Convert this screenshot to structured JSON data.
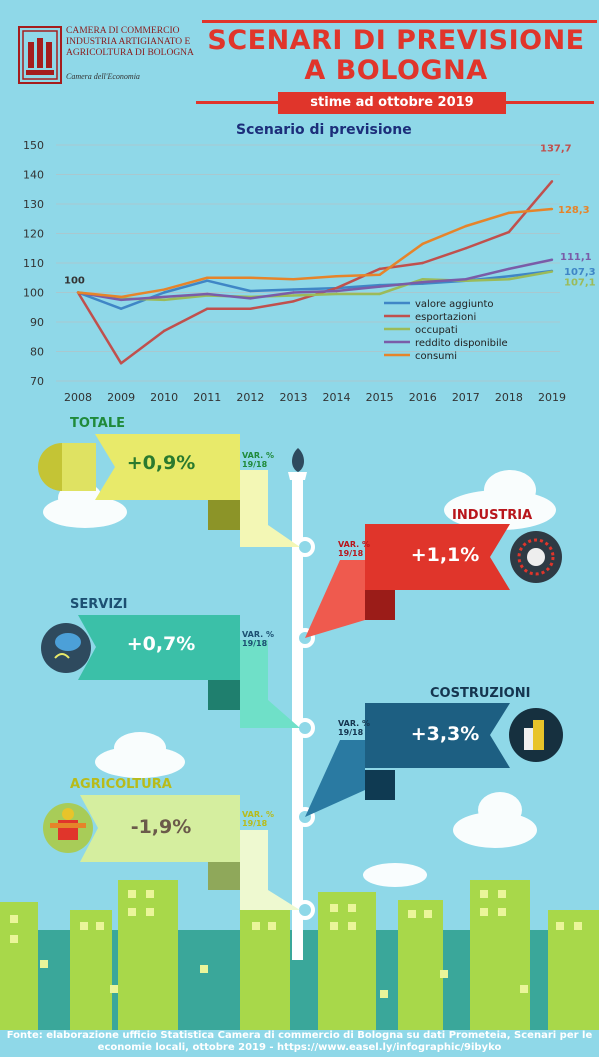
{
  "header": {
    "org_lines": [
      "CAMERA DI COMMERCIO",
      "INDUSTRIA ARTIGIANATO E",
      "AGRICOLTURA DI BOLOGNA"
    ],
    "org_sub": "Camera dell'Economia",
    "title_line1": "SCENARI DI PREVISIONE",
    "title_line2": "A BOLOGNA",
    "subtitle": "stime ad ottobre 2019"
  },
  "colors": {
    "background": "#8fd8e8",
    "title_red": "#e0352b",
    "valore_aggiunto": "#3f86c6",
    "esportazioni": "#c0504d",
    "occupati": "#9bbb59",
    "reddito_disponibile": "#7a5ca8",
    "consumi": "#e6842a"
  },
  "chart_data": {
    "type": "line",
    "title": "Scenario di previsione",
    "x": [
      "2008",
      "2009",
      "2010",
      "2011",
      "2012",
      "2013",
      "2014",
      "2015",
      "2016",
      "2017",
      "2018",
      "2019"
    ],
    "ylim": [
      70,
      150
    ],
    "yticks": [
      70,
      80,
      90,
      100,
      110,
      120,
      130,
      140,
      150
    ],
    "grid": true,
    "legend_position": "bottom-right",
    "start_label": "100",
    "series": [
      {
        "name": "valore aggiunto",
        "color": "#3f86c6",
        "values": [
          100,
          94.5,
          100,
          104,
          100.5,
          101,
          101.5,
          102.5,
          103,
          104,
          105.5,
          107.3
        ],
        "end_label": "107,3"
      },
      {
        "name": "esportazioni",
        "color": "#c0504d",
        "values": [
          100,
          76,
          87,
          94.5,
          94.5,
          97,
          101.5,
          108,
          110,
          115,
          120.5,
          137.7
        ],
        "end_label": "137,7"
      },
      {
        "name": "occupati",
        "color": "#9bbb59",
        "values": [
          100,
          98,
          97.5,
          99,
          98.5,
          99,
          99.5,
          99.5,
          104.5,
          104,
          104.5,
          107.1
        ],
        "end_label": "107,1"
      },
      {
        "name": "reddito disponibile",
        "color": "#7a5ca8",
        "values": [
          100,
          97.5,
          98.5,
          99.5,
          98,
          100,
          100.5,
          102,
          103.5,
          104.5,
          108,
          111.1
        ],
        "end_label": "111,1"
      },
      {
        "name": "consumi",
        "color": "#e6842a",
        "values": [
          100,
          98.5,
          101,
          105,
          105,
          104.5,
          105.5,
          106,
          116.5,
          122.5,
          127,
          128.3
        ],
        "end_label": "128,3"
      }
    ]
  },
  "sectors": [
    {
      "label": "TOTALE",
      "value": "+0,9%",
      "var": "VAR. %",
      "period": "19/18",
      "color": "#e8ea6a",
      "label_color": "#1f8a3a",
      "value_color": "#2a7a2e"
    },
    {
      "label": "INDUSTRIA",
      "value": "+1,1%",
      "var": "VAR. %",
      "period": "19/18",
      "color": "#e0352b",
      "label_color": "#b8151b",
      "value_color": "#ffffff"
    },
    {
      "label": "SERVIZI",
      "value": "+0,7%",
      "var": "VAR. %",
      "period": "19/18",
      "color": "#3bc0a8",
      "label_color": "#1c4f72",
      "value_color": "#ffffff"
    },
    {
      "label": "COSTRUZIONI",
      "value": "+3,3%",
      "var": "VAR. %",
      "period": "19/18",
      "color": "#1d5f82",
      "label_color": "#15354f",
      "value_color": "#ffffff"
    },
    {
      "label": "AGRICOLTURA",
      "value": "-1,9%",
      "var": "VAR. %",
      "period": "19/18",
      "color": "#d5ee9f",
      "label_color": "#b8bb1a",
      "value_color": "#6b5a4a"
    }
  ],
  "footer": {
    "line1": "Fonte: elaborazione ufficio Statistica Camera di commercio di Bologna su dati Prometeia, Scenari per le",
    "line2": "economie locali, ottobre 2019 - https://www.easel.ly/infographic/9ibyko"
  }
}
